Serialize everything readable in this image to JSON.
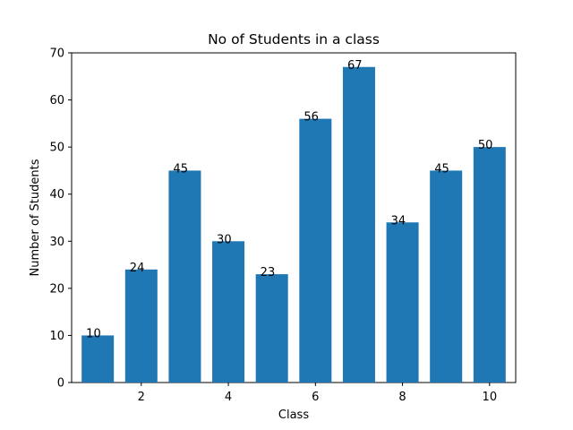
{
  "chart_data": {
    "type": "bar",
    "title": "No of Students in a class",
    "xlabel": "Class",
    "ylabel": "Number of Students",
    "categories": [
      1,
      2,
      3,
      4,
      5,
      6,
      7,
      8,
      9,
      10
    ],
    "values": [
      10,
      24,
      45,
      30,
      23,
      56,
      67,
      34,
      45,
      50
    ],
    "data_labels": [
      "10",
      "24",
      "45",
      "30",
      "23",
      "56",
      "67",
      "34",
      "45",
      "50"
    ],
    "xlim": [
      0.4,
      10.6
    ],
    "ylim": [
      0,
      70
    ],
    "xticks": [
      2,
      4,
      6,
      8,
      10
    ],
    "yticks": [
      0,
      10,
      20,
      30,
      40,
      50,
      60,
      70
    ],
    "bar_color": "#1f77b4",
    "grid": false,
    "legend": "none"
  }
}
